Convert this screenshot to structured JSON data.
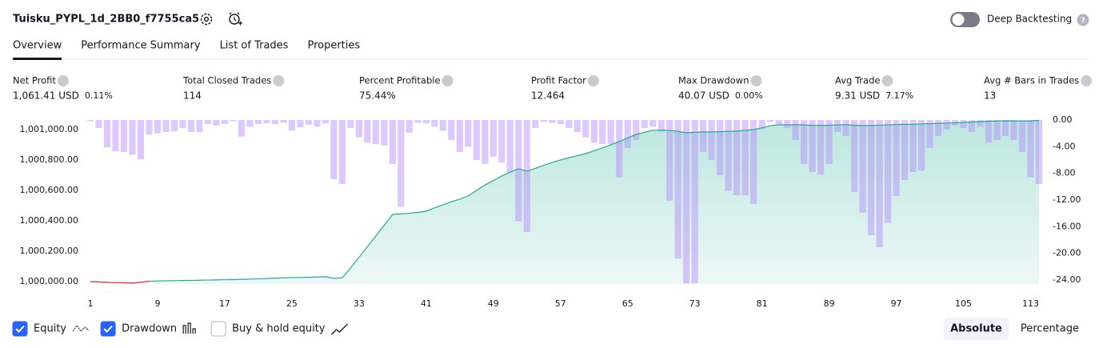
{
  "header": {
    "title": "Tuisku_PYPL_1d_2BB0_f7755ca5",
    "deep_backtesting": "Deep Backtesting"
  },
  "tabs": [
    "Overview",
    "Performance Summary",
    "List of Trades",
    "Properties"
  ],
  "metrics": [
    {
      "label": "Net Profit",
      "value": "1,061.41 USD",
      "detail": "0.11%",
      "color": "#089981"
    },
    {
      "label": "Total Closed Trades",
      "value": "114",
      "color": "#131722"
    },
    {
      "label": "Percent Profitable",
      "value": "75.44%",
      "color": "#089981"
    },
    {
      "label": "Profit Factor",
      "value": "12.464",
      "color": "#089981"
    },
    {
      "label": "Max Drawdown",
      "value": "40.07 USD",
      "detail": "0.00%",
      "color": "#f23645"
    },
    {
      "label": "Avg Trade",
      "value": "9.31 USD",
      "detail": "7.17%",
      "color": "#089981"
    },
    {
      "label": "Avg # Bars in Trades",
      "value": "13",
      "color": "#131722"
    }
  ],
  "chart_data": {
    "type": "combo",
    "x": [
      1,
      2,
      3,
      4,
      5,
      6,
      7,
      8,
      9,
      10,
      11,
      12,
      13,
      14,
      15,
      16,
      17,
      18,
      19,
      20,
      21,
      22,
      23,
      24,
      25,
      26,
      27,
      28,
      29,
      30,
      31,
      32,
      33,
      34,
      35,
      36,
      37,
      38,
      39,
      40,
      41,
      42,
      43,
      44,
      45,
      46,
      47,
      48,
      49,
      50,
      51,
      52,
      53,
      54,
      55,
      56,
      57,
      58,
      59,
      60,
      61,
      62,
      63,
      64,
      65,
      66,
      67,
      68,
      69,
      70,
      71,
      72,
      73,
      74,
      75,
      76,
      77,
      78,
      79,
      80,
      81,
      82,
      83,
      84,
      85,
      86,
      87,
      88,
      89,
      90,
      91,
      92,
      93,
      94,
      95,
      96,
      97,
      98,
      99,
      100,
      101,
      102,
      103,
      104,
      105,
      106,
      107,
      108,
      109,
      110,
      111,
      112,
      113,
      114
    ],
    "xlim": [
      1,
      114
    ],
    "xticks": [
      1,
      9,
      17,
      25,
      33,
      41,
      49,
      57,
      65,
      73,
      81,
      89,
      97,
      105,
      113
    ],
    "ylim": [
      999984,
      1001063
    ],
    "yticks": [
      {
        "value": 1000000,
        "label": "1,000,000.00"
      },
      {
        "value": 1000200,
        "label": "1,000,200.00"
      },
      {
        "value": 1000400,
        "label": "1,000,400.00"
      },
      {
        "value": 1000600,
        "label": "1,000,600.00"
      },
      {
        "value": 1000800,
        "label": "1,000,800.00"
      },
      {
        "value": 1001000,
        "label": "1,001,000.00"
      }
    ],
    "y2lim": [
      -24.6,
      0
    ],
    "y2ticks": [
      {
        "value": 0,
        "label": "0.00"
      },
      {
        "value": -4,
        "label": "-4.00"
      },
      {
        "value": -8,
        "label": "-8.00"
      },
      {
        "value": -12,
        "label": "-12.00"
      },
      {
        "value": -16,
        "label": "-16.00"
      },
      {
        "value": -20,
        "label": "-20.00"
      },
      {
        "value": -24,
        "label": "-24.00"
      }
    ],
    "series": [
      {
        "name": "Equity",
        "color": "#22ab94",
        "negative_color": "#f23645",
        "checked": true,
        "values": [
          1000000,
          999998,
          999995,
          999993,
          999992,
          999990,
          999996,
          1000002,
          1000004,
          1000005,
          1000006,
          1000007,
          1000008,
          1000009,
          1000010,
          1000011,
          1000012,
          1000013,
          1000015,
          1000016,
          1000018,
          1000020,
          1000022,
          1000024,
          1000026,
          1000027,
          1000028,
          1000030,
          1000032,
          1000021,
          1000025,
          1000090,
          1000160,
          1000230,
          1000300,
          1000370,
          1000442,
          1000445,
          1000450,
          1000455,
          1000463,
          1000485,
          1000505,
          1000525,
          1000542,
          1000563,
          1000600,
          1000635,
          1000665,
          1000695,
          1000720,
          1000742,
          1000726,
          1000745,
          1000765,
          1000784,
          1000800,
          1000815,
          1000828,
          1000842,
          1000860,
          1000880,
          1000900,
          1000921,
          1000945,
          1000968,
          1000982,
          1000995,
          1000997,
          1000995,
          1000988,
          1000979,
          1000982,
          1000984,
          1000985,
          1000986,
          1000988,
          1000990,
          1000995,
          1001000,
          1001012,
          1001025,
          1001032,
          1001031,
          1001032,
          1001030,
          1001028,
          1001027,
          1001029,
          1001031,
          1001032,
          1001028,
          1001026,
          1001027,
          1001029,
          1001031,
          1001033,
          1001034,
          1001035,
          1001037,
          1001039,
          1001041,
          1001043,
          1001045,
          1001047,
          1001050,
          1001052,
          1001055,
          1001056,
          1001058,
          1001057,
          1001056,
          1001057,
          1001061
        ]
      },
      {
        "name": "Drawdown",
        "color": "#b388ff",
        "axis": "y2",
        "checked": true,
        "values": [
          -0.2,
          -1.2,
          -4.1,
          -4.7,
          -4.8,
          -5.2,
          -5.9,
          -2.2,
          -2.0,
          -1.8,
          -1.7,
          -1.2,
          -1.8,
          -1.8,
          -0.6,
          -0.8,
          -0.6,
          -0.2,
          -2.5,
          -1.0,
          -0.6,
          -0.5,
          -0.6,
          -0.4,
          -1.6,
          -1.1,
          -0.7,
          -1.0,
          -0.5,
          -8.9,
          -9.6,
          -1.2,
          -2.6,
          -3.4,
          -3.6,
          -3.8,
          -6.6,
          -13.0,
          -1.9,
          -0.4,
          -0.5,
          -1.0,
          -1.6,
          -3.0,
          -4.8,
          -4.0,
          -6.0,
          -6.6,
          -5.5,
          -6.4,
          -7.9,
          -15.2,
          -16.8,
          -1.2,
          -0.3,
          -0.4,
          -0.6,
          -1.2,
          -1.8,
          -2.6,
          -3.4,
          -3.6,
          -3.6,
          -8.6,
          -4.2,
          -3.0,
          -1.2,
          -1.0,
          -1.8,
          -12.1,
          -20.8,
          -24.5,
          -24.5,
          -4.8,
          -6.0,
          -8.3,
          -10.6,
          -11.3,
          -11.3,
          -12.6,
          -1.4,
          -0.3,
          -0.6,
          -1.2,
          -3.0,
          -6.6,
          -7.8,
          -8.2,
          -6.6,
          -1.8,
          -2.4,
          -10.8,
          -13.9,
          -17.3,
          -19.1,
          -15.4,
          -11.4,
          -9.0,
          -7.8,
          -7.6,
          -4.2,
          -2.4,
          -1.4,
          -0.8,
          -1.2,
          -1.8,
          -1.0,
          -3.4,
          -3.0,
          -2.4,
          -3.0,
          -4.8,
          -8.6,
          -9.6
        ]
      }
    ],
    "buy_hold": {
      "name": "Buy & hold equity",
      "checked": false
    },
    "modes": [
      "Absolute",
      "Percentage"
    ],
    "active_mode": "Absolute"
  }
}
